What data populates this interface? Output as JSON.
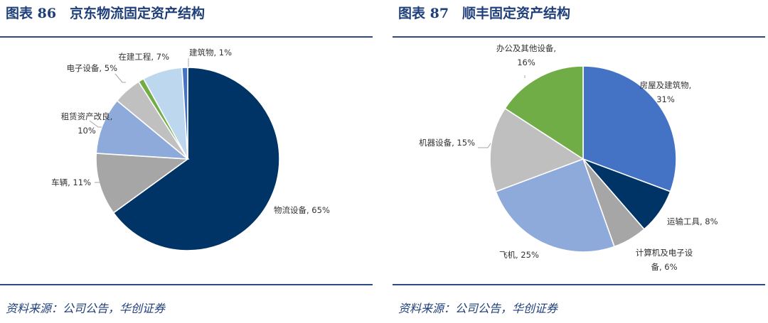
{
  "panels": [
    {
      "title": "图表 86　京东物流固定资产结构",
      "source": "资料来源：公司公告，华创证券",
      "chart_data": {
        "type": "pie",
        "slices": [
          {
            "label": "物流设备, 65%",
            "value": 65,
            "color": "#003366"
          },
          {
            "label": "车辆, 11%",
            "value": 11,
            "color": "#a6a6a6"
          },
          {
            "label": "租赁资产改良,\n10%",
            "value": 10,
            "color": "#8eaadb"
          },
          {
            "label": "电子设备, 5%",
            "value": 5,
            "color": "#c0c0c0"
          },
          {
            "label": "",
            "value": 1,
            "color": "#70ad47"
          },
          {
            "label": "在建工程, 7%",
            "value": 7,
            "color": "#bdd7ee"
          },
          {
            "label": "建筑物, 1%",
            "value": 1,
            "color": "#4472c4"
          }
        ]
      }
    },
    {
      "title": "图表 87　顺丰固定资产结构",
      "source": "资料来源：公司公告，华创证券",
      "chart_data": {
        "type": "pie",
        "slices": [
          {
            "label": "房屋及建筑物,\n31%",
            "value": 31,
            "color": "#4472c4"
          },
          {
            "label": "运输工具, 8%",
            "value": 8,
            "color": "#003366"
          },
          {
            "label": "计算机及电子设\n备, 6%",
            "value": 6,
            "color": "#a6a6a6"
          },
          {
            "label": "飞机, 25%",
            "value": 25,
            "color": "#8eaadb"
          },
          {
            "label": "机器设备, 15%",
            "value": 15,
            "color": "#bfbfbf"
          },
          {
            "label": "办公及其他设备,\n16%",
            "value": 16,
            "color": "#70ad47"
          }
        ]
      }
    }
  ]
}
